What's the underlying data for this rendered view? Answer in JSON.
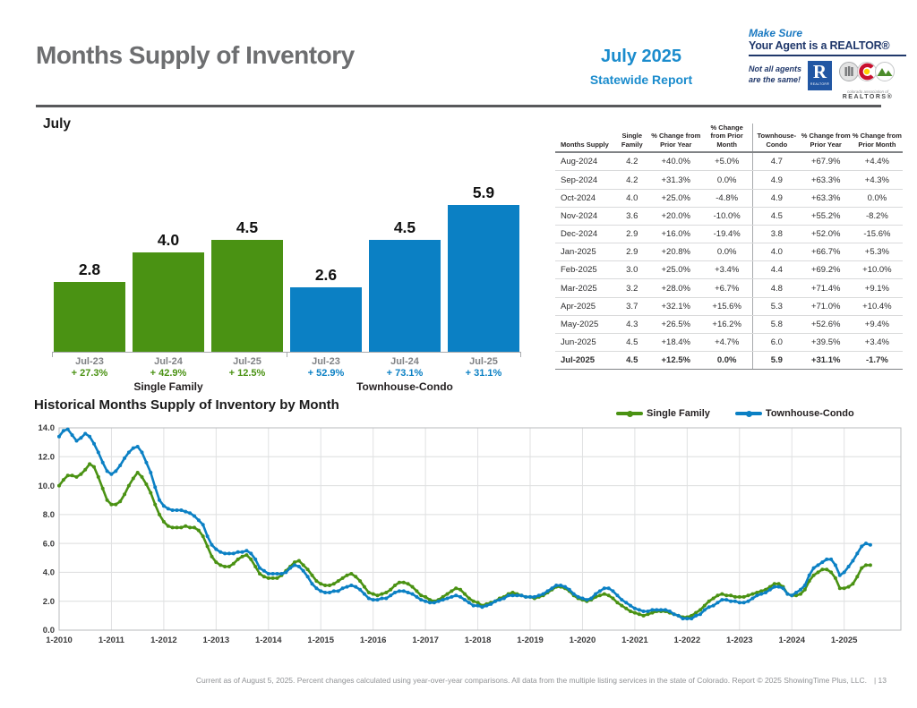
{
  "header": {
    "title": "Months Supply of Inventory",
    "period": "July 2025",
    "report_type": "Statewide Report",
    "brand": {
      "tagline_line1": "Make Sure",
      "tagline_line2": "Your Agent is a REALTOR®",
      "note_line1": "Not all agents",
      "note_line2": "are the same!",
      "realtor_r_letter": "R",
      "realtor_r_caption": "REALTOR®",
      "car_caption_line1": "colorado association of",
      "car_caption_line2": "REALTORS®"
    }
  },
  "colors": {
    "single_family_green": "#4a9213",
    "townhouse_condo_blue": "#0b80c4",
    "header_blue": "#1b8ccd",
    "title_gray": "#6d6e70",
    "navy": "#20386b"
  },
  "bar_section": {
    "title": "July"
  },
  "table": {
    "headers": [
      "Months Supply",
      "Single Family",
      "% Change from Prior Year",
      "% Change from Prior Month",
      "Townhouse-Condo",
      "% Change from Prior Year",
      "% Change from Prior Month"
    ],
    "rows": [
      [
        "Aug-2024",
        "4.2",
        "+40.0%",
        "+5.0%",
        "4.7",
        "+67.9%",
        "+4.4%"
      ],
      [
        "Sep-2024",
        "4.2",
        "+31.3%",
        "0.0%",
        "4.9",
        "+63.3%",
        "+4.3%"
      ],
      [
        "Oct-2024",
        "4.0",
        "+25.0%",
        "-4.8%",
        "4.9",
        "+63.3%",
        "0.0%"
      ],
      [
        "Nov-2024",
        "3.6",
        "+20.0%",
        "-10.0%",
        "4.5",
        "+55.2%",
        "-8.2%"
      ],
      [
        "Dec-2024",
        "2.9",
        "+16.0%",
        "-19.4%",
        "3.8",
        "+52.0%",
        "-15.6%"
      ],
      [
        "Jan-2025",
        "2.9",
        "+20.8%",
        "0.0%",
        "4.0",
        "+66.7%",
        "+5.3%"
      ],
      [
        "Feb-2025",
        "3.0",
        "+25.0%",
        "+3.4%",
        "4.4",
        "+69.2%",
        "+10.0%"
      ],
      [
        "Mar-2025",
        "3.2",
        "+28.0%",
        "+6.7%",
        "4.8",
        "+71.4%",
        "+9.1%"
      ],
      [
        "Apr-2025",
        "3.7",
        "+32.1%",
        "+15.6%",
        "5.3",
        "+71.0%",
        "+10.4%"
      ],
      [
        "May-2025",
        "4.3",
        "+26.5%",
        "+16.2%",
        "5.8",
        "+52.6%",
        "+9.4%"
      ],
      [
        "Jun-2025",
        "4.5",
        "+18.4%",
        "+4.7%",
        "6.0",
        "+39.5%",
        "+3.4%"
      ],
      [
        "Jul-2025",
        "4.5",
        "+12.5%",
        "0.0%",
        "5.9",
        "+31.1%",
        "-1.7%"
      ]
    ],
    "bold_last_row": true
  },
  "historical": {
    "title": "Historical Months Supply of Inventory by Month"
  },
  "legend": [
    {
      "label": "Single Family",
      "color": "#4a9213"
    },
    {
      "label": "Townhouse-Condo",
      "color": "#0b80c4"
    }
  ],
  "chart_data": [
    {
      "type": "bar",
      "title": "July",
      "ylim": [
        0,
        6.5
      ],
      "groups": [
        {
          "name": "Single Family",
          "color": "#4a9213",
          "bars": [
            {
              "label": "Jul-23",
              "value": 2.8,
              "pct": "+ 27.3%"
            },
            {
              "label": "Jul-24",
              "value": 4.0,
              "pct": "+ 42.9%"
            },
            {
              "label": "Jul-25",
              "value": 4.5,
              "pct": "+ 12.5%"
            }
          ]
        },
        {
          "name": "Townhouse-Condo",
          "color": "#0b80c4",
          "bars": [
            {
              "label": "Jul-23",
              "value": 2.6,
              "pct": "+ 52.9%"
            },
            {
              "label": "Jul-24",
              "value": 4.5,
              "pct": "+ 73.1%"
            },
            {
              "label": "Jul-25",
              "value": 5.9,
              "pct": "+ 31.1%"
            }
          ]
        }
      ]
    },
    {
      "type": "line",
      "title": "Historical Months Supply of Inventory by Month",
      "x_start": "1-2010",
      "x_end": "7-2025",
      "points_per_year": 12,
      "x_tick_labels": [
        "1-2010",
        "1-2011",
        "1-2012",
        "1-2013",
        "1-2014",
        "1-2015",
        "1-2016",
        "1-2017",
        "1-2018",
        "1-2019",
        "1-2020",
        "1-2021",
        "1-2022",
        "1-2023",
        "1-2024",
        "1-2025"
      ],
      "ylim": [
        0,
        14
      ],
      "y_ticks": [
        0,
        2,
        4,
        6,
        8,
        10,
        12,
        14
      ],
      "grid": true,
      "legend_position": "top-right",
      "series": [
        {
          "name": "Single Family",
          "color": "#4a9213",
          "values": [
            10.0,
            10.4,
            10.7,
            10.7,
            10.6,
            10.8,
            11.1,
            11.5,
            11.3,
            10.6,
            9.8,
            9.0,
            8.7,
            8.7,
            8.9,
            9.4,
            10.0,
            10.5,
            10.9,
            10.6,
            10.1,
            9.5,
            8.7,
            8.0,
            7.5,
            7.2,
            7.1,
            7.1,
            7.1,
            7.2,
            7.1,
            7.1,
            6.9,
            6.5,
            5.8,
            5.1,
            4.7,
            4.5,
            4.4,
            4.4,
            4.6,
            4.9,
            5.1,
            5.2,
            4.9,
            4.4,
            3.9,
            3.7,
            3.6,
            3.6,
            3.6,
            3.8,
            4.1,
            4.4,
            4.7,
            4.8,
            4.5,
            4.2,
            3.8,
            3.4,
            3.2,
            3.1,
            3.1,
            3.2,
            3.4,
            3.6,
            3.8,
            3.9,
            3.7,
            3.4,
            3.0,
            2.6,
            2.5,
            2.4,
            2.5,
            2.6,
            2.8,
            3.1,
            3.3,
            3.3,
            3.2,
            3.0,
            2.7,
            2.4,
            2.3,
            2.1,
            2.0,
            2.1,
            2.3,
            2.5,
            2.7,
            2.9,
            2.8,
            2.5,
            2.2,
            2.0,
            1.9,
            1.7,
            1.8,
            1.9,
            2.0,
            2.2,
            2.3,
            2.5,
            2.6,
            2.5,
            2.4,
            2.3,
            2.3,
            2.2,
            2.3,
            2.4,
            2.6,
            2.8,
            3.0,
            3.0,
            2.9,
            2.7,
            2.4,
            2.2,
            2.1,
            2.0,
            2.1,
            2.3,
            2.4,
            2.5,
            2.4,
            2.2,
            1.9,
            1.7,
            1.5,
            1.3,
            1.2,
            1.1,
            1.0,
            1.1,
            1.2,
            1.3,
            1.3,
            1.3,
            1.2,
            1.1,
            1.0,
            0.9,
            0.9,
            1.0,
            1.2,
            1.4,
            1.7,
            2.0,
            2.2,
            2.4,
            2.5,
            2.4,
            2.4,
            2.3,
            2.3,
            2.3,
            2.4,
            2.5,
            2.6,
            2.7,
            2.8,
            3.0,
            3.2,
            3.2,
            3.0,
            2.5,
            2.4,
            2.4,
            2.5,
            2.8,
            3.4,
            3.8,
            4.0,
            4.2,
            4.2,
            4.0,
            3.6,
            2.9,
            2.9,
            3.0,
            3.2,
            3.7,
            4.3,
            4.5,
            4.5
          ]
        },
        {
          "name": "Townhouse-Condo",
          "color": "#0b80c4",
          "values": [
            13.4,
            13.8,
            13.9,
            13.5,
            13.1,
            13.3,
            13.6,
            13.4,
            12.9,
            12.3,
            11.6,
            11.0,
            10.8,
            11.0,
            11.4,
            11.9,
            12.3,
            12.6,
            12.7,
            12.3,
            11.6,
            10.9,
            9.9,
            9.0,
            8.6,
            8.4,
            8.3,
            8.3,
            8.3,
            8.2,
            8.1,
            7.9,
            7.6,
            7.3,
            6.5,
            5.9,
            5.6,
            5.4,
            5.3,
            5.3,
            5.3,
            5.4,
            5.4,
            5.5,
            5.3,
            4.9,
            4.3,
            4.1,
            3.9,
            3.9,
            3.9,
            3.9,
            4.0,
            4.3,
            4.5,
            4.4,
            4.1,
            3.7,
            3.2,
            2.9,
            2.7,
            2.6,
            2.6,
            2.7,
            2.7,
            2.9,
            3.0,
            3.1,
            3.0,
            2.8,
            2.5,
            2.2,
            2.1,
            2.1,
            2.2,
            2.2,
            2.4,
            2.6,
            2.7,
            2.7,
            2.6,
            2.5,
            2.3,
            2.1,
            2.0,
            1.9,
            1.9,
            2.0,
            2.1,
            2.2,
            2.3,
            2.4,
            2.3,
            2.1,
            1.9,
            1.7,
            1.7,
            1.6,
            1.7,
            1.8,
            2.0,
            2.1,
            2.2,
            2.4,
            2.4,
            2.4,
            2.4,
            2.3,
            2.3,
            2.3,
            2.4,
            2.5,
            2.7,
            2.9,
            3.1,
            3.1,
            3.0,
            2.8,
            2.5,
            2.3,
            2.2,
            2.1,
            2.2,
            2.5,
            2.7,
            2.9,
            2.9,
            2.7,
            2.4,
            2.1,
            1.9,
            1.7,
            1.5,
            1.4,
            1.3,
            1.3,
            1.4,
            1.4,
            1.4,
            1.4,
            1.3,
            1.1,
            1.0,
            0.8,
            0.8,
            0.8,
            1.0,
            1.1,
            1.4,
            1.6,
            1.7,
            1.9,
            2.1,
            2.1,
            2.0,
            2.0,
            1.9,
            1.9,
            2.0,
            2.2,
            2.4,
            2.5,
            2.6,
            2.8,
            3.0,
            3.0,
            2.9,
            2.5,
            2.4,
            2.6,
            2.8,
            3.1,
            3.8,
            4.3,
            4.5,
            4.7,
            4.9,
            4.9,
            4.5,
            3.8,
            4.0,
            4.4,
            4.8,
            5.3,
            5.8,
            6.0,
            5.9
          ]
        }
      ]
    }
  ],
  "footer": {
    "text": "Current as of August 5, 2025. Percent changes calculated using year-over-year comparisons. All data from the multiple listing services in the state of Colorado. Report © 2025 ShowingTime Plus, LLC.",
    "page": "|  13"
  }
}
